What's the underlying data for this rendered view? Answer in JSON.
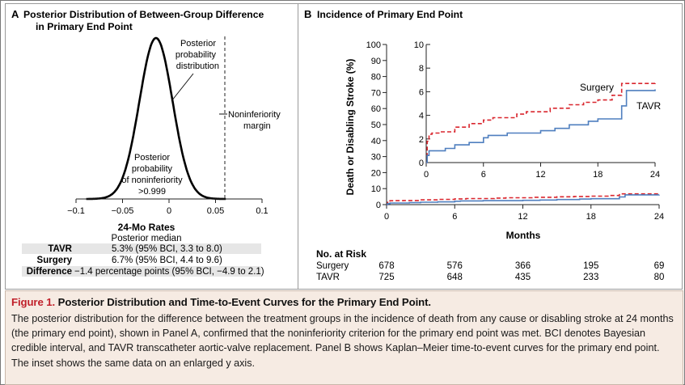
{
  "panel_a": {
    "label": "A",
    "title_line1": "Posterior Distribution of Between-Group Difference",
    "title_line2": "in Primary End Point",
    "annotations": {
      "posterior_dist": [
        "Posterior",
        "probability",
        "distribution"
      ],
      "margin": [
        "Noninferiority",
        "margin"
      ],
      "posterior_prob": [
        "Posterior",
        "probability",
        "of noninferiority",
        ">0.999"
      ]
    },
    "rates_title": "24-Mo Rates",
    "rates_subtitle": "Posterior median",
    "rates": [
      {
        "label": "TAVR",
        "value": "5.3% (95% BCI, 3.3 to 8.0)"
      },
      {
        "label": "Surgery",
        "value": "6.7% (95% BCI, 4.4 to 9.6)"
      },
      {
        "label": "Difference",
        "value": "−1.4 percentage points (95% BCI, −4.9 to 2.1)"
      }
    ]
  },
  "panel_b": {
    "label": "B",
    "title": "Incidence of Primary End Point",
    "ylabel": "Death or Disabling Stroke (%)",
    "xlabel": "Months",
    "series_labels": {
      "surgery": "Surgery",
      "tavr": "TAVR"
    },
    "at_risk_title": "No. at Risk",
    "at_risk": [
      {
        "group": "Surgery",
        "values": [
          "678",
          "576",
          "366",
          "195",
          "69"
        ]
      },
      {
        "group": "TAVR",
        "values": [
          "725",
          "648",
          "435",
          "233",
          "80"
        ]
      }
    ]
  },
  "caption": {
    "label": "Figure 1.",
    "title": "Posterior Distribution and Time-to-Event Curves for the Primary End Point.",
    "body": "The posterior distribution for the difference between the treatment groups in the incidence of death from any cause or disabling stroke at 24 months (the primary end point), shown in Panel A, confirmed that the noninferiority criterion for the primary end point was met. BCI denotes Bayesian credible interval, and TAVR transcatheter aortic-valve replacement. Panel B shows Kaplan–Meier time-to-event curves for the primary end point. The inset shows the same data on an enlarged y axis."
  },
  "colors": {
    "surgery": "#d9262e",
    "tavr": "#4f7fbf",
    "caption_bg": "#f6ebe3",
    "caption_label": "#c0202a",
    "rates_row_bg": "#e6e6e6"
  },
  "chart_data": [
    {
      "type": "area",
      "panel": "A",
      "title": "Posterior Distribution of Between-Group Difference in Primary End Point",
      "xlabel": "",
      "ylabel": "",
      "xlim": [
        -0.1,
        0.1
      ],
      "x_ticks": [
        -0.1,
        -0.05,
        0,
        0.05,
        0.1
      ],
      "x_tick_labels": [
        "−0.1",
        "−0.05",
        "0",
        "0.05",
        "0.1"
      ],
      "distribution": {
        "mean": -0.014,
        "ci95": [
          -0.049,
          0.021
        ]
      },
      "noninferiority_margin": 0.06,
      "posterior_probability_noninferiority": ">0.999"
    },
    {
      "type": "line",
      "panel": "B",
      "title": "Incidence of Primary End Point",
      "xlabel": "Months",
      "ylabel": "Death or Disabling Stroke (%)",
      "xlim": [
        0,
        24
      ],
      "ylim": [
        0,
        100
      ],
      "x_ticks": [
        0,
        6,
        12,
        18,
        24
      ],
      "y_ticks": [
        0,
        10,
        20,
        30,
        40,
        50,
        60,
        70,
        80,
        90,
        100
      ],
      "inset": {
        "ylim": [
          0,
          10
        ],
        "y_ticks": [
          0,
          2,
          4,
          6,
          8,
          10
        ],
        "x_ticks": [
          0,
          6,
          12,
          18,
          24
        ]
      },
      "series": [
        {
          "name": "Surgery",
          "style": "dashed",
          "x": [
            0,
            0.1,
            0.3,
            0.6,
            1.5,
            3.0,
            4.5,
            6.0,
            7.0,
            9.5,
            10.5,
            13.0,
            15.0,
            16.5,
            18.0,
            19.5,
            20.5,
            24.0
          ],
          "y": [
            0,
            1.8,
            2.4,
            2.5,
            2.6,
            3.0,
            3.3,
            3.6,
            3.8,
            4.1,
            4.3,
            4.6,
            4.9,
            5.1,
            5.3,
            5.7,
            6.7,
            6.8
          ]
        },
        {
          "name": "TAVR",
          "style": "solid",
          "x": [
            0,
            0.1,
            0.3,
            2.0,
            3.0,
            4.5,
            6.0,
            6.5,
            8.5,
            12.0,
            13.5,
            15.0,
            17.0,
            18.0,
            20.5,
            21.0,
            24.0
          ],
          "y": [
            0,
            0.6,
            1.0,
            1.2,
            1.5,
            1.7,
            2.1,
            2.3,
            2.5,
            2.7,
            2.9,
            3.2,
            3.5,
            3.7,
            4.8,
            6.1,
            6.2
          ]
        }
      ]
    }
  ]
}
